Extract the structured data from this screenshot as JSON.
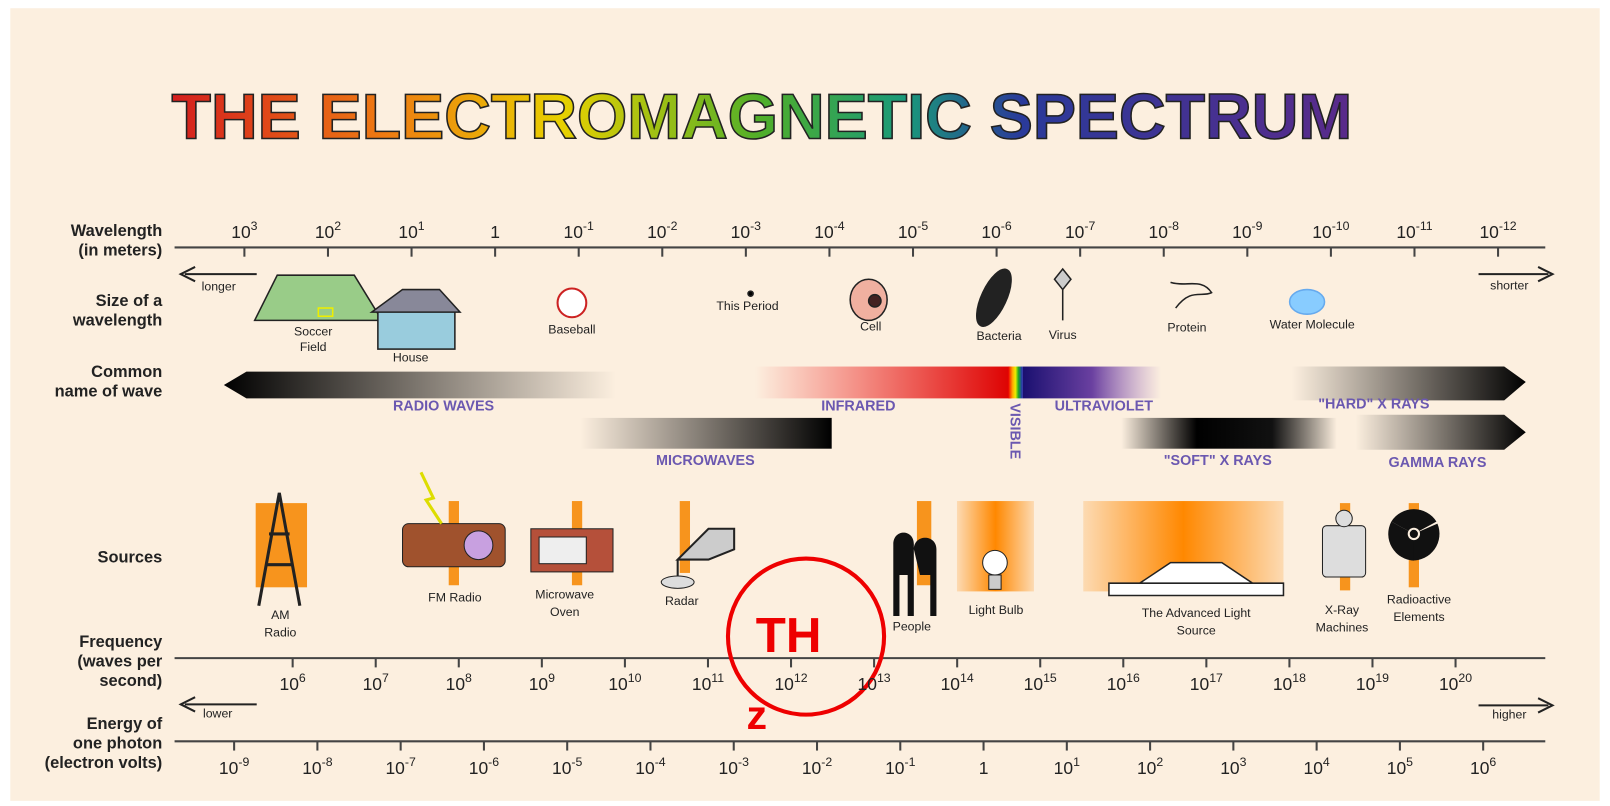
{
  "title": "THE ELECTROMAGNETIC SPECTRUM",
  "row_labels": {
    "wavelength": [
      "Wavelength",
      "(in meters)"
    ],
    "size": [
      "Size of a",
      "wavelength"
    ],
    "common": [
      "Common",
      "name of wave"
    ],
    "sources": [
      "Sources"
    ],
    "frequency": [
      "Frequency",
      "(waves per",
      "second)"
    ],
    "energy": [
      "Energy of",
      "one photon",
      "(electron volts)"
    ]
  },
  "wavelength_ticks": [
    {
      "base": "10",
      "exp": "3"
    },
    {
      "base": "10",
      "exp": "2"
    },
    {
      "base": "10",
      "exp": "1"
    },
    {
      "base": "1"
    },
    {
      "base": "10",
      "exp": "-1"
    },
    {
      "base": "10",
      "exp": "-2"
    },
    {
      "base": "10",
      "exp": "-3"
    },
    {
      "base": "10",
      "exp": "-4"
    },
    {
      "base": "10",
      "exp": "-5"
    },
    {
      "base": "10",
      "exp": "-6"
    },
    {
      "base": "10",
      "exp": "-7"
    },
    {
      "base": "10",
      "exp": "-8"
    },
    {
      "base": "10",
      "exp": "-9"
    },
    {
      "base": "10",
      "exp": "-10"
    },
    {
      "base": "10",
      "exp": "-11"
    },
    {
      "base": "10",
      "exp": "-12"
    }
  ],
  "frequency_ticks": [
    {
      "base": "10",
      "exp": "6"
    },
    {
      "base": "10",
      "exp": "7"
    },
    {
      "base": "10",
      "exp": "8"
    },
    {
      "base": "10",
      "exp": "9"
    },
    {
      "base": "10",
      "exp": "10"
    },
    {
      "base": "10",
      "exp": "11"
    },
    {
      "base": "10",
      "exp": "12"
    },
    {
      "base": "10",
      "exp": "13"
    },
    {
      "base": "10",
      "exp": "14"
    },
    {
      "base": "10",
      "exp": "15"
    },
    {
      "base": "10",
      "exp": "16"
    },
    {
      "base": "10",
      "exp": "17"
    },
    {
      "base": "10",
      "exp": "18"
    },
    {
      "base": "10",
      "exp": "19"
    },
    {
      "base": "10",
      "exp": "20"
    }
  ],
  "energy_ticks": [
    {
      "base": "10",
      "exp": "-9"
    },
    {
      "base": "10",
      "exp": "-8"
    },
    {
      "base": "10",
      "exp": "-7"
    },
    {
      "base": "10",
      "exp": "-6"
    },
    {
      "base": "10",
      "exp": "-5"
    },
    {
      "base": "10",
      "exp": "-4"
    },
    {
      "base": "10",
      "exp": "-3"
    },
    {
      "base": "10",
      "exp": "-2"
    },
    {
      "base": "10",
      "exp": "-1"
    },
    {
      "base": "1"
    },
    {
      "base": "10",
      "exp": "1"
    },
    {
      "base": "10",
      "exp": "2"
    },
    {
      "base": "10",
      "exp": "3"
    },
    {
      "base": "10",
      "exp": "4"
    },
    {
      "base": "10",
      "exp": "5"
    },
    {
      "base": "10",
      "exp": "6"
    }
  ],
  "direction_labels": {
    "wavelength": [
      "longer",
      "shorter"
    ],
    "energy": [
      "lower",
      "higher"
    ]
  },
  "sizes": [
    [
      "Soccer",
      "Field"
    ],
    [
      "House"
    ],
    [
      "Baseball"
    ],
    [
      "This Period"
    ],
    [
      "Cell"
    ],
    [
      "Bacteria"
    ],
    [
      "Virus"
    ],
    [
      "Protein"
    ],
    [
      "Water Molecule"
    ]
  ],
  "waves": [
    "RADIO WAVES",
    "INFRARED",
    "VISIBLE",
    "ULTRAVIOLET",
    "\"HARD\" X RAYS",
    "MICROWAVES",
    "\"SOFT\" X RAYS",
    "GAMMA RAYS"
  ],
  "sources": [
    [
      "AM",
      "Radio"
    ],
    [
      "FM Radio"
    ],
    [
      "Microwave",
      "Oven"
    ],
    [
      "Radar"
    ],
    [
      "People"
    ],
    [
      "Light Bulb"
    ],
    [
      "The Advanced Light",
      "Source"
    ],
    [
      "X-Ray",
      "Machines"
    ],
    [
      "Radioactive",
      "Elements"
    ]
  ],
  "annotation": [
    "TH",
    "z"
  ]
}
